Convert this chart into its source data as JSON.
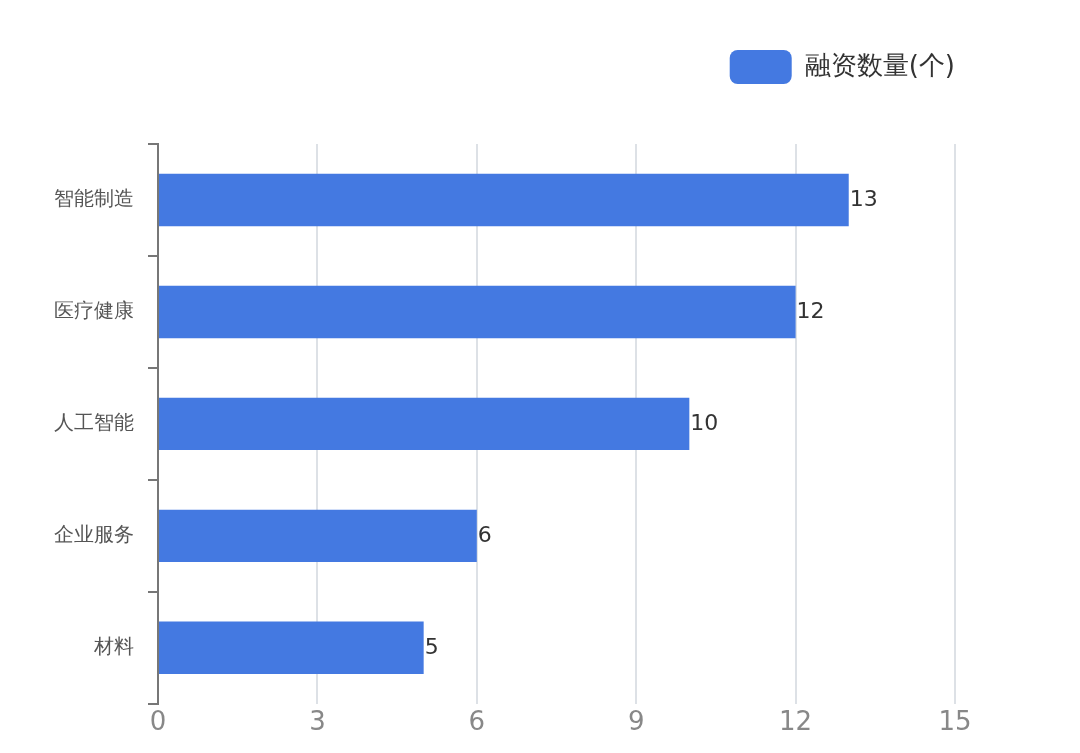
{
  "chart_data": {
    "type": "bar",
    "orientation": "horizontal",
    "categories": [
      "智能制造",
      "医疗健康",
      "人工智能",
      "企业服务",
      "材料"
    ],
    "series": [
      {
        "name": "融资数量(个)",
        "color": "#4479e1",
        "values": [
          13,
          12,
          10,
          6,
          5
        ]
      }
    ],
    "xlim": [
      0,
      15
    ],
    "xticks": [
      0,
      3,
      6,
      9,
      12,
      15
    ],
    "grid": "x",
    "legend": "top right",
    "data_labels": true
  }
}
